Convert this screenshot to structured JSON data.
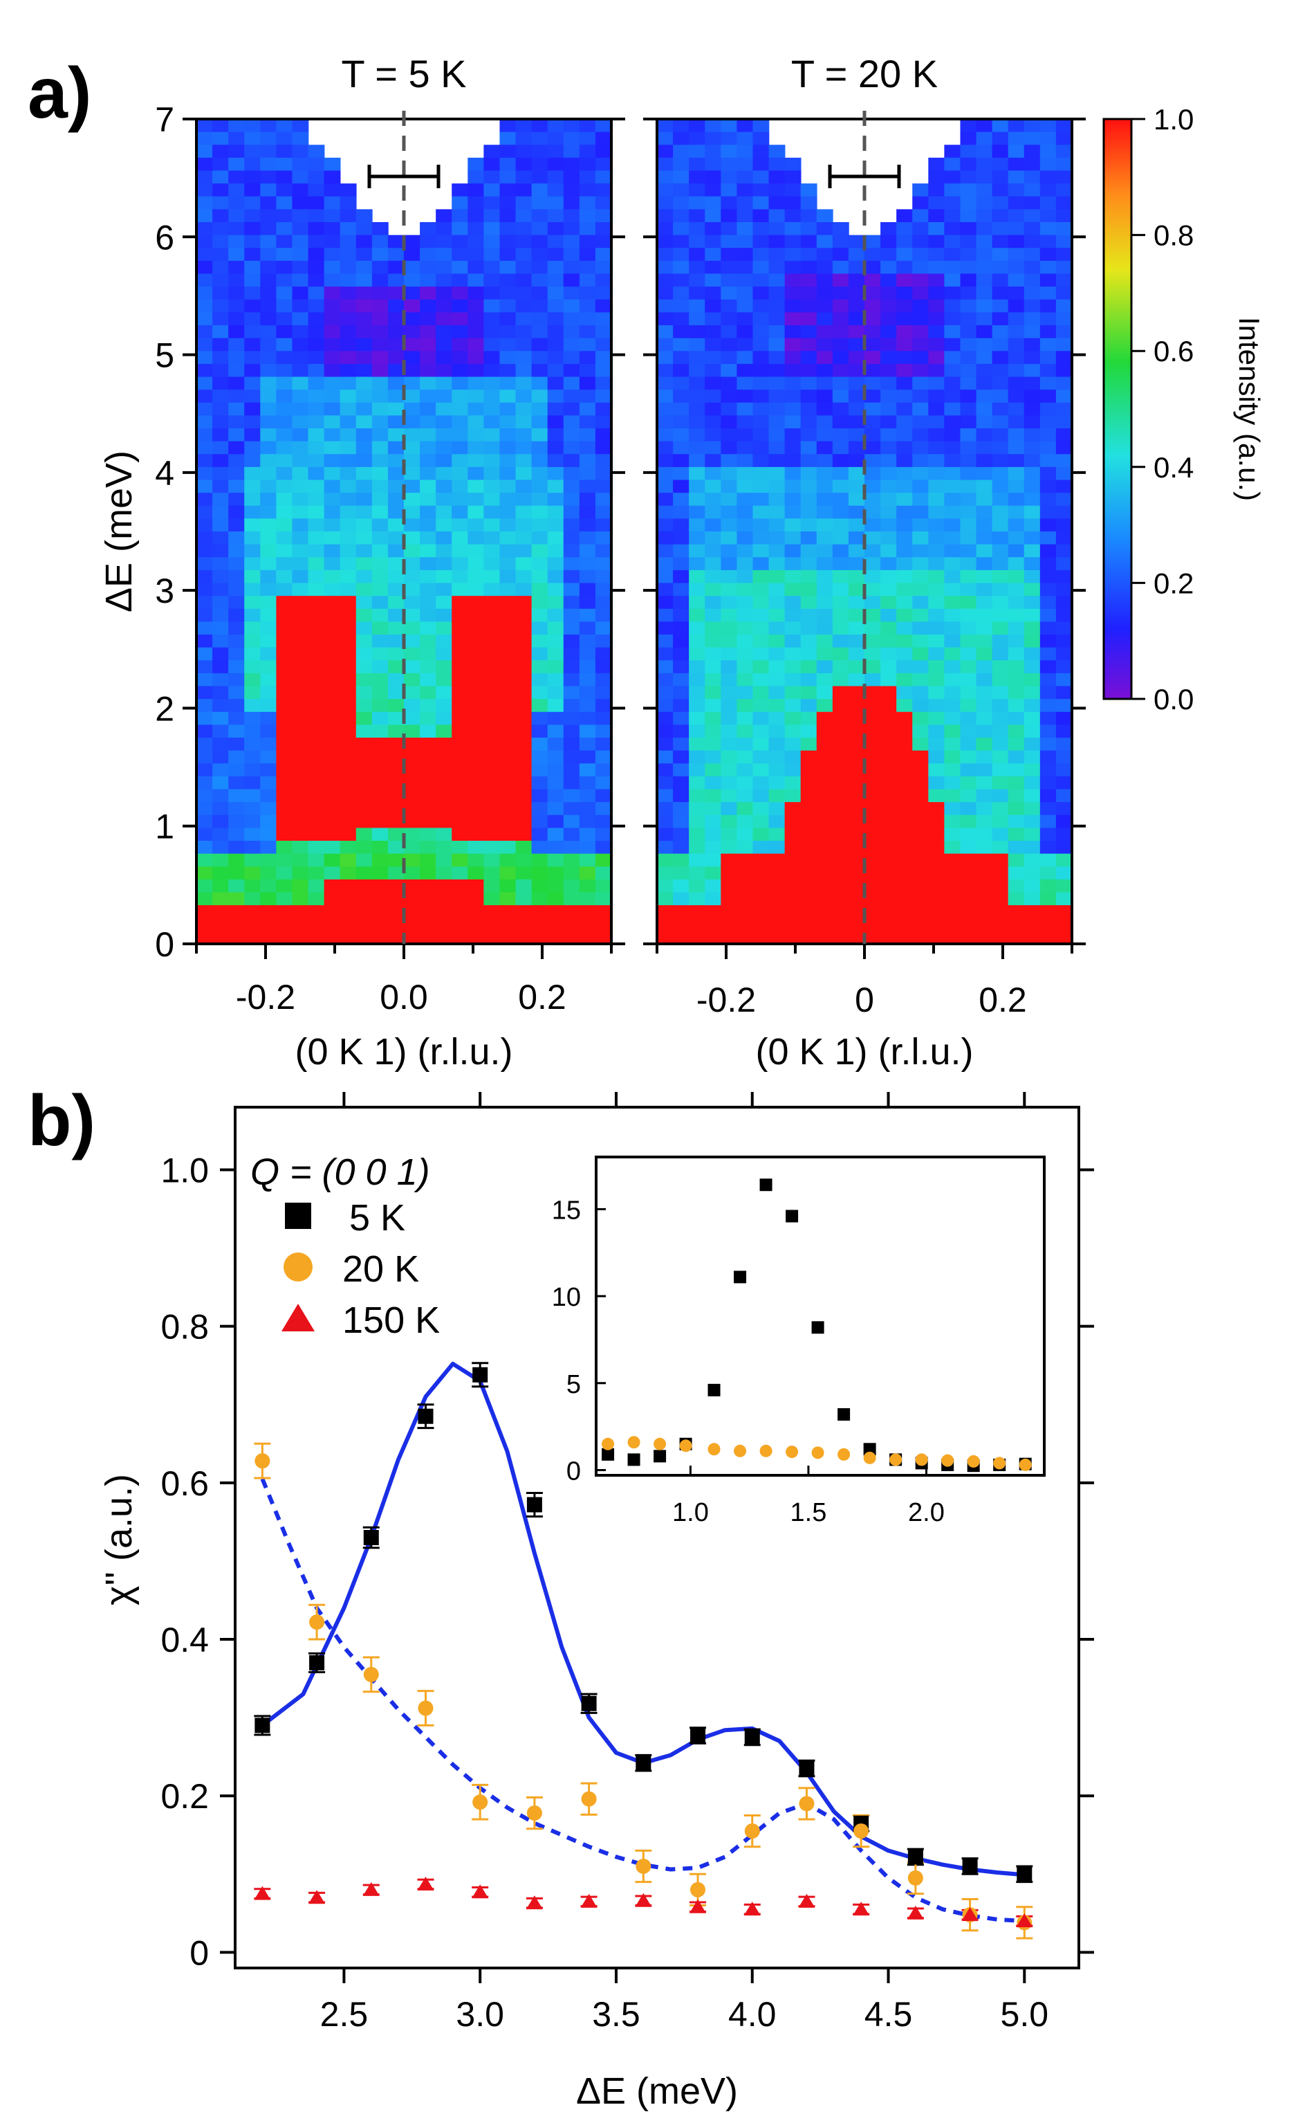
{
  "panel_a": {
    "letter": "a)",
    "cbar": {
      "label": "Intensity (a.u.)",
      "ticks": [
        "0.0",
        "0.2",
        "0.4",
        "0.6",
        "0.8",
        "1.0"
      ],
      "range": [
        0,
        1
      ]
    },
    "left": {
      "title": "T = 5 K",
      "ylabel": "ΔE (meV)",
      "xlabel": "(0 K 1) (r.l.u.)",
      "xticks": [
        "-0.2",
        "0.0",
        "0.2"
      ],
      "yticks": [
        "0",
        "1",
        "2",
        "3",
        "4",
        "5",
        "6",
        "7"
      ]
    },
    "right": {
      "title": "T = 20 K",
      "xlabel": "(0 K 1) (r.l.u.)",
      "xticks": [
        "-0.2",
        "0",
        "0.2"
      ]
    }
  },
  "panel_b": {
    "letter": "b)",
    "legend_title": "Q = (0 0 1)",
    "xlabel": "ΔE (meV)",
    "ylabel": "χ'' (a.u.)",
    "xticks": [
      "2.5",
      "3.0",
      "3.5",
      "4.0",
      "4.5",
      "5.0"
    ],
    "yticks": [
      "0",
      "0.2",
      "0.4",
      "0.6",
      "0.8",
      "1.0"
    ],
    "inset_xticks": [
      "1.0",
      "1.5",
      "2.0"
    ],
    "inset_yticks": [
      "0",
      "5",
      "10",
      "15"
    ]
  },
  "colors": {
    "s5": "#000000",
    "s20": "#f5a623",
    "s150": "#e8121b",
    "fit": "#1a2ee6"
  },
  "chart_data": [
    {
      "type": "heatmap",
      "title": "T = 5 K",
      "xlabel": "(0 K 1) (r.l.u.)",
      "ylabel": "ΔE (meV)",
      "xlim": [
        -0.3,
        0.3
      ],
      "ylim": [
        0,
        7
      ],
      "clim": [
        0,
        1
      ],
      "resolution_bar": {
        "center": 0.0,
        "half_width": 0.05,
        "energy": 6.5
      }
    },
    {
      "type": "heatmap",
      "title": "T = 20 K",
      "xlabel": "(0 K 1) (r.l.u.)",
      "xlim": [
        -0.3,
        0.3
      ],
      "ylim": [
        0,
        7
      ],
      "clim": [
        0,
        1
      ],
      "resolution_bar": {
        "center": 0.0,
        "half_width": 0.05,
        "energy": 6.5
      }
    },
    {
      "type": "scatter",
      "title": "Q = (0 0 1)",
      "xlabel": "ΔE (meV)",
      "ylabel": "χ'' (a.u.)",
      "xlim": [
        2.1,
        5.2
      ],
      "ylim": [
        -0.02,
        1.08
      ],
      "series": [
        {
          "name": "5 K",
          "x": [
            2.2,
            2.4,
            2.6,
            2.8,
            3.0,
            3.2,
            3.4,
            3.6,
            3.8,
            4.0,
            4.2,
            4.4,
            4.6,
            4.8,
            5.0
          ],
          "y": [
            0.29,
            0.37,
            0.53,
            0.685,
            0.738,
            0.572,
            0.318,
            0.242,
            0.277,
            0.275,
            0.235,
            0.165,
            0.122,
            0.11,
            0.1
          ],
          "err": [
            0.012,
            0.012,
            0.013,
            0.015,
            0.015,
            0.015,
            0.012,
            0.01,
            0.01,
            0.01,
            0.01,
            0.01,
            0.01,
            0.01,
            0.01
          ]
        },
        {
          "name": "20 K",
          "x": [
            2.2,
            2.4,
            2.6,
            2.8,
            3.0,
            3.2,
            3.4,
            3.6,
            3.8,
            4.0,
            4.2,
            4.4,
            4.6,
            4.8,
            5.0
          ],
          "y": [
            0.628,
            0.422,
            0.355,
            0.312,
            0.192,
            0.178,
            0.196,
            0.11,
            0.08,
            0.155,
            0.19,
            0.155,
            0.095,
            0.048,
            0.038
          ],
          "err": [
            0.022,
            0.022,
            0.022,
            0.022,
            0.022,
            0.02,
            0.02,
            0.02,
            0.02,
            0.02,
            0.02,
            0.02,
            0.02,
            0.02,
            0.02
          ]
        },
        {
          "name": "150 K",
          "x": [
            2.2,
            2.4,
            2.6,
            2.8,
            3.0,
            3.2,
            3.4,
            3.6,
            3.8,
            4.0,
            4.2,
            4.4,
            4.6,
            4.8,
            5.0
          ],
          "y": [
            0.075,
            0.07,
            0.08,
            0.087,
            0.077,
            0.063,
            0.065,
            0.066,
            0.058,
            0.055,
            0.065,
            0.055,
            0.05,
            0.048,
            0.04
          ],
          "err": [
            0.006,
            0.006,
            0.006,
            0.006,
            0.006,
            0.006,
            0.006,
            0.006,
            0.006,
            0.006,
            0.006,
            0.006,
            0.006,
            0.006,
            0.006
          ]
        }
      ],
      "fits": [
        {
          "name": "5 K fit",
          "style": "solid",
          "x": [
            2.2,
            2.35,
            2.5,
            2.6,
            2.7,
            2.8,
            2.9,
            3.0,
            3.1,
            3.2,
            3.3,
            3.4,
            3.5,
            3.6,
            3.7,
            3.8,
            3.9,
            4.0,
            4.1,
            4.2,
            4.3,
            4.4,
            4.5,
            4.6,
            4.7,
            4.8,
            4.9,
            5.0
          ],
          "y": [
            0.29,
            0.33,
            0.44,
            0.53,
            0.63,
            0.71,
            0.752,
            0.73,
            0.64,
            0.51,
            0.39,
            0.3,
            0.255,
            0.242,
            0.252,
            0.272,
            0.284,
            0.286,
            0.27,
            0.23,
            0.18,
            0.148,
            0.13,
            0.12,
            0.112,
            0.106,
            0.102,
            0.099
          ]
        },
        {
          "name": "20 K fit",
          "style": "dashed",
          "x": [
            2.2,
            2.3,
            2.4,
            2.5,
            2.6,
            2.7,
            2.8,
            2.9,
            3.0,
            3.1,
            3.2,
            3.3,
            3.4,
            3.5,
            3.6,
            3.7,
            3.8,
            3.9,
            4.0,
            4.1,
            4.2,
            4.3,
            4.4,
            4.5,
            4.6,
            4.7,
            4.8,
            4.9,
            5.0
          ],
          "y": [
            0.605,
            0.52,
            0.44,
            0.39,
            0.35,
            0.31,
            0.275,
            0.24,
            0.21,
            0.185,
            0.165,
            0.15,
            0.135,
            0.122,
            0.112,
            0.106,
            0.108,
            0.122,
            0.15,
            0.178,
            0.19,
            0.17,
            0.13,
            0.095,
            0.07,
            0.055,
            0.047,
            0.042,
            0.04
          ]
        }
      ]
    },
    {
      "type": "scatter",
      "title": "inset",
      "xlim": [
        0.6,
        2.5
      ],
      "ylim": [
        -0.3,
        18
      ],
      "series": [
        {
          "name": "5 K",
          "x": [
            0.65,
            0.76,
            0.87,
            0.98,
            1.1,
            1.21,
            1.32,
            1.43,
            1.54,
            1.65,
            1.76,
            1.87,
            1.98,
            2.09,
            2.2,
            2.31,
            2.42
          ],
          "y": [
            0.9,
            0.6,
            0.8,
            1.5,
            4.6,
            11.1,
            16.4,
            14.6,
            8.2,
            3.2,
            1.2,
            0.6,
            0.4,
            0.3,
            0.25,
            0.3,
            0.35
          ]
        },
        {
          "name": "20 K",
          "x": [
            0.65,
            0.76,
            0.87,
            0.98,
            1.1,
            1.21,
            1.32,
            1.43,
            1.54,
            1.65,
            1.76,
            1.87,
            1.98,
            2.09,
            2.2,
            2.31,
            2.42
          ],
          "y": [
            1.5,
            1.6,
            1.5,
            1.4,
            1.2,
            1.1,
            1.1,
            1.05,
            1.0,
            0.9,
            0.7,
            0.6,
            0.6,
            0.55,
            0.5,
            0.4,
            0.3
          ]
        }
      ]
    }
  ]
}
